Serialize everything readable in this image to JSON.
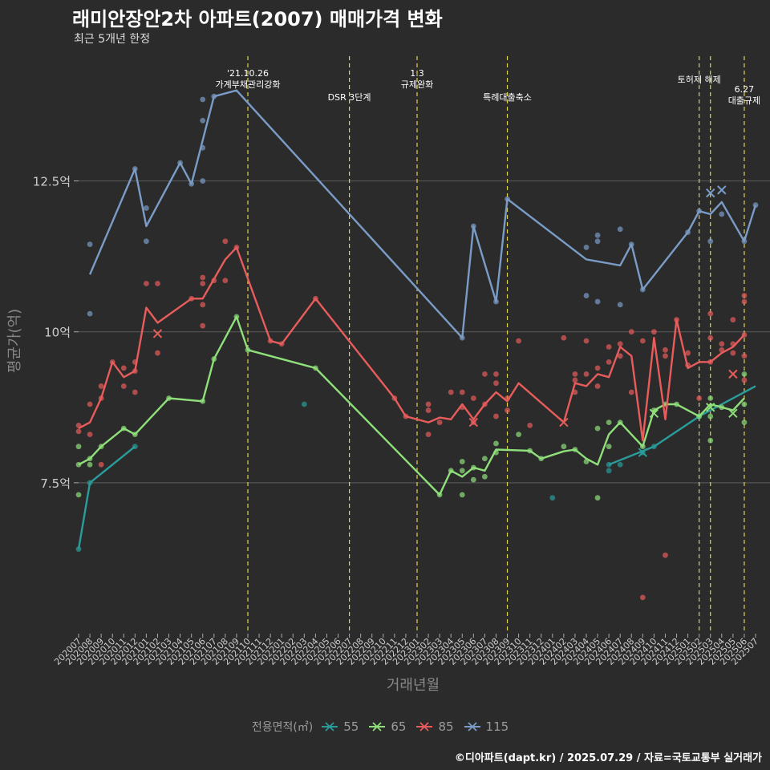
{
  "title": "래미안장안2차 아파트(2007) 매매가격 변화",
  "subtitle": "최근 5개년 한정",
  "caption": "©디아파트(dapt.kr) / 2025.07.29 / 자료=국토교통부 실거래가",
  "chart_data": {
    "type": "line",
    "xlabel": "거래년월",
    "ylabel": "평균가(억)",
    "ylim": [
      5.0,
      14.7
    ],
    "y_ticks": [
      {
        "value": 7.5,
        "label": "7.5억"
      },
      {
        "value": 10,
        "label": "10억"
      },
      {
        "value": 12.5,
        "label": "12.5억"
      }
    ],
    "x_labels": [
      "202007",
      "202008",
      "202009",
      "202010",
      "202011",
      "202012",
      "202101",
      "202102",
      "202103",
      "202104",
      "202105",
      "202106",
      "202107",
      "202108",
      "202109",
      "202110",
      "202111",
      "202112",
      "202201",
      "202202",
      "202203",
      "202204",
      "202205",
      "202206",
      "202207",
      "202208",
      "202209",
      "202210",
      "202211",
      "202212",
      "202301",
      "202302",
      "202303",
      "202304",
      "202305",
      "202306",
      "202307",
      "202308",
      "202309",
      "202310",
      "202311",
      "202312",
      "202401",
      "202402",
      "202403",
      "202404",
      "202405",
      "202406",
      "202407",
      "202408",
      "202409",
      "202410",
      "202411",
      "202412",
      "202501",
      "202502",
      "202503",
      "202504",
      "202505",
      "202506",
      "202507"
    ],
    "legend_title": "전용면적(㎡)",
    "grid": true,
    "series": [
      {
        "name": "55",
        "color": "#2a9d9b",
        "line": [
          [
            0,
            6.4
          ],
          [
            1,
            7.5
          ],
          [
            5,
            8.1
          ]
        ],
        "line2": [
          [
            47,
            7.8
          ],
          [
            51,
            8.1
          ],
          [
            55,
            8.6
          ],
          [
            60,
            9.1
          ]
        ],
        "points": [
          [
            0,
            6.4
          ],
          [
            1,
            7.5
          ],
          [
            5,
            8.1
          ],
          [
            20,
            8.8
          ],
          [
            42,
            7.25
          ],
          [
            47,
            7.7
          ],
          [
            47,
            7.8
          ],
          [
            48,
            7.8
          ],
          [
            50,
            8.0
          ],
          [
            51,
            8.1
          ],
          [
            55,
            8.6
          ]
        ],
        "crosses": [
          [
            50,
            8.0
          ]
        ]
      },
      {
        "name": "65",
        "color": "#8fe07a",
        "line": [
          [
            0,
            7.8
          ],
          [
            1,
            7.9
          ],
          [
            2,
            8.1
          ],
          [
            4,
            8.4
          ],
          [
            5,
            8.3
          ],
          [
            8,
            8.9
          ],
          [
            11,
            8.85
          ],
          [
            12,
            9.55
          ],
          [
            14,
            10.25
          ],
          [
            15,
            9.7
          ],
          [
            21,
            9.4
          ],
          [
            32,
            7.3
          ],
          [
            33,
            7.7
          ],
          [
            34,
            7.6
          ],
          [
            35,
            7.75
          ],
          [
            36,
            7.7
          ],
          [
            37,
            8.05
          ],
          [
            40,
            8.03
          ],
          [
            41,
            7.9
          ],
          [
            43,
            8.02
          ],
          [
            44,
            8.05
          ],
          [
            45,
            7.9
          ],
          [
            46,
            7.8
          ],
          [
            47,
            8.3
          ],
          [
            48,
            8.5
          ],
          [
            50,
            8.1
          ],
          [
            51,
            8.7
          ],
          [
            52,
            8.8
          ],
          [
            53,
            8.8
          ],
          [
            55,
            8.6
          ],
          [
            56,
            8.8
          ],
          [
            57,
            8.75
          ],
          [
            58,
            8.7
          ],
          [
            59,
            8.9
          ]
        ],
        "points": [
          [
            0,
            7.3
          ],
          [
            0,
            7.8
          ],
          [
            0,
            8.1
          ],
          [
            1,
            7.9
          ],
          [
            1,
            7.8
          ],
          [
            2,
            8.1
          ],
          [
            4,
            8.4
          ],
          [
            5,
            8.3
          ],
          [
            8,
            8.9
          ],
          [
            11,
            8.85
          ],
          [
            12,
            9.55
          ],
          [
            14,
            10.25
          ],
          [
            15,
            9.7
          ],
          [
            21,
            9.4
          ],
          [
            32,
            7.3
          ],
          [
            33,
            7.7
          ],
          [
            34,
            7.3
          ],
          [
            34,
            7.7
          ],
          [
            34,
            7.85
          ],
          [
            35,
            7.55
          ],
          [
            35,
            7.75
          ],
          [
            36,
            7.6
          ],
          [
            36,
            7.9
          ],
          [
            37,
            8.0
          ],
          [
            37,
            8.15
          ],
          [
            39,
            8.3
          ],
          [
            40,
            8.03
          ],
          [
            41,
            7.9
          ],
          [
            43,
            8.1
          ],
          [
            44,
            8.05
          ],
          [
            45,
            7.85
          ],
          [
            46,
            7.25
          ],
          [
            46,
            8.4
          ],
          [
            47,
            8.1
          ],
          [
            47,
            8.5
          ],
          [
            48,
            8.5
          ],
          [
            50,
            8.1
          ],
          [
            51,
            8.7
          ],
          [
            52,
            8.8
          ],
          [
            53,
            8.8
          ],
          [
            55,
            8.6
          ],
          [
            56,
            8.2
          ],
          [
            56,
            8.6
          ],
          [
            56,
            8.9
          ],
          [
            57,
            8.75
          ],
          [
            59,
            8.5
          ],
          [
            59,
            8.8
          ],
          [
            59,
            9.3
          ]
        ],
        "crosses": [
          [
            51,
            8.65
          ],
          [
            56,
            8.75
          ],
          [
            58,
            8.65
          ]
        ]
      },
      {
        "name": "85",
        "color": "#e85c5c",
        "line": [
          [
            0,
            8.4
          ],
          [
            1,
            8.5
          ],
          [
            2,
            8.9
          ],
          [
            3,
            9.5
          ],
          [
            4,
            9.25
          ],
          [
            5,
            9.35
          ],
          [
            6,
            10.4
          ],
          [
            7,
            10.15
          ],
          [
            10,
            10.55
          ],
          [
            11,
            10.55
          ],
          [
            13,
            11.2
          ],
          [
            14,
            11.4
          ],
          [
            17,
            9.85
          ],
          [
            18,
            9.8
          ],
          [
            21,
            10.55
          ],
          [
            28,
            8.9
          ],
          [
            29,
            8.6
          ],
          [
            31,
            8.5
          ],
          [
            32,
            8.58
          ],
          [
            33,
            8.55
          ],
          [
            34,
            8.8
          ],
          [
            35,
            8.55
          ],
          [
            36,
            8.8
          ],
          [
            37,
            9.0
          ],
          [
            38,
            8.85
          ],
          [
            39,
            9.15
          ],
          [
            43,
            8.5
          ],
          [
            44,
            9.15
          ],
          [
            45,
            9.1
          ],
          [
            46,
            9.3
          ],
          [
            47,
            9.25
          ],
          [
            48,
            9.75
          ],
          [
            49,
            9.6
          ],
          [
            50,
            8.2
          ],
          [
            51,
            9.9
          ],
          [
            52,
            8.55
          ],
          [
            53,
            10.2
          ],
          [
            54,
            9.4
          ],
          [
            55,
            9.5
          ],
          [
            56,
            9.5
          ],
          [
            57,
            9.65
          ],
          [
            58,
            9.75
          ],
          [
            59,
            9.95
          ]
        ],
        "points": [
          [
            0,
            8.35
          ],
          [
            0,
            8.45
          ],
          [
            1,
            8.8
          ],
          [
            1,
            8.3
          ],
          [
            2,
            8.9
          ],
          [
            2,
            9.1
          ],
          [
            2,
            7.8
          ],
          [
            3,
            9.5
          ],
          [
            4,
            9.4
          ],
          [
            4,
            9.1
          ],
          [
            5,
            9.0
          ],
          [
            5,
            9.35
          ],
          [
            5,
            9.5
          ],
          [
            6,
            10.8
          ],
          [
            7,
            10.8
          ],
          [
            7,
            9.65
          ],
          [
            10,
            10.55
          ],
          [
            11,
            10.1
          ],
          [
            11,
            10.45
          ],
          [
            11,
            10.8
          ],
          [
            11,
            10.9
          ],
          [
            12,
            10.85
          ],
          [
            13,
            10.85
          ],
          [
            13,
            11.5
          ],
          [
            14,
            11.4
          ],
          [
            17,
            9.85
          ],
          [
            18,
            9.8
          ],
          [
            21,
            10.55
          ],
          [
            28,
            8.9
          ],
          [
            29,
            8.6
          ],
          [
            31,
            8.3
          ],
          [
            31,
            8.7
          ],
          [
            31,
            8.8
          ],
          [
            32,
            8.5
          ],
          [
            33,
            9.0
          ],
          [
            34,
            9.0
          ],
          [
            34,
            8.75
          ],
          [
            35,
            8.5
          ],
          [
            35,
            8.9
          ],
          [
            36,
            9.3
          ],
          [
            36,
            8.8
          ],
          [
            37,
            9.3
          ],
          [
            37,
            9.15
          ],
          [
            37,
            8.6
          ],
          [
            38,
            8.9
          ],
          [
            38,
            8.7
          ],
          [
            39,
            9.85
          ],
          [
            40,
            8.45
          ],
          [
            43,
            9.9
          ],
          [
            44,
            9.3
          ],
          [
            44,
            9.2
          ],
          [
            44,
            9.0
          ],
          [
            45,
            9.85
          ],
          [
            45,
            9.3
          ],
          [
            46,
            9.4
          ],
          [
            46,
            9.1
          ],
          [
            47,
            9.75
          ],
          [
            47,
            9.5
          ],
          [
            48,
            9.8
          ],
          [
            48,
            9.6
          ],
          [
            49,
            9.0
          ],
          [
            49,
            10.0
          ],
          [
            50,
            5.6
          ],
          [
            50,
            9.85
          ],
          [
            51,
            10.0
          ],
          [
            52,
            6.3
          ],
          [
            52,
            9.6
          ],
          [
            52,
            9.7
          ],
          [
            53,
            10.2
          ],
          [
            54,
            9.45
          ],
          [
            54,
            9.65
          ],
          [
            55,
            8.9
          ],
          [
            56,
            9.5
          ],
          [
            56,
            9.9
          ],
          [
            56,
            10.3
          ],
          [
            57,
            9.8
          ],
          [
            57,
            9.7
          ],
          [
            58,
            9.8
          ],
          [
            58,
            10.2
          ],
          [
            58,
            9.65
          ],
          [
            59,
            9.95
          ],
          [
            59,
            9.6
          ],
          [
            59,
            10.6
          ],
          [
            59,
            10.5
          ],
          [
            59,
            9.2
          ]
        ],
        "crosses": [
          [
            7,
            9.97
          ],
          [
            35,
            8.5
          ],
          [
            43,
            8.5
          ],
          [
            58,
            9.3
          ]
        ]
      },
      {
        "name": "115",
        "color": "#7a9cc6",
        "line": [
          [
            1,
            10.95
          ],
          [
            5,
            12.7
          ],
          [
            6,
            11.75
          ],
          [
            9,
            12.8
          ],
          [
            10,
            12.45
          ],
          [
            12,
            13.9
          ],
          [
            14,
            14.0
          ],
          [
            34,
            9.9
          ],
          [
            35,
            11.75
          ],
          [
            37,
            10.5
          ],
          [
            38,
            12.2
          ],
          [
            45,
            11.2
          ],
          [
            48,
            11.1
          ],
          [
            49,
            11.45
          ],
          [
            50,
            10.7
          ],
          [
            54,
            11.65
          ],
          [
            55,
            12.0
          ],
          [
            56,
            11.95
          ],
          [
            57,
            12.15
          ],
          [
            59,
            11.5
          ],
          [
            60,
            12.1
          ]
        ],
        "points": [
          [
            1,
            11.45
          ],
          [
            1,
            10.3
          ],
          [
            5,
            12.7
          ],
          [
            6,
            12.05
          ],
          [
            6,
            11.5
          ],
          [
            9,
            12.8
          ],
          [
            10,
            12.45
          ],
          [
            11,
            12.5
          ],
          [
            11,
            13.05
          ],
          [
            11,
            13.5
          ],
          [
            11,
            13.85
          ],
          [
            12,
            13.9
          ],
          [
            34,
            9.9
          ],
          [
            35,
            11.75
          ],
          [
            37,
            10.5
          ],
          [
            38,
            12.2
          ],
          [
            45,
            11.4
          ],
          [
            45,
            10.6
          ],
          [
            46,
            11.6
          ],
          [
            46,
            11.5
          ],
          [
            46,
            10.5
          ],
          [
            48,
            11.7
          ],
          [
            48,
            10.45
          ],
          [
            49,
            11.45
          ],
          [
            50,
            10.7
          ],
          [
            54,
            11.65
          ],
          [
            55,
            12.0
          ],
          [
            56,
            11.5
          ],
          [
            57,
            11.95
          ],
          [
            59,
            11.5
          ],
          [
            60,
            12.1
          ]
        ],
        "crosses": [
          [
            56,
            12.3
          ],
          [
            57,
            12.35
          ]
        ]
      }
    ],
    "events": [
      {
        "index": 15,
        "label": "'21.10.26\n가계부채관리강화"
      },
      {
        "index": 24,
        "label": "DSR 3단계"
      },
      {
        "index": 30,
        "label": "1.3\n규제완화"
      },
      {
        "index": 38,
        "label": "특례대출축소"
      },
      {
        "index": 55,
        "label": "토허제 해제"
      },
      {
        "index": 56,
        "label": ""
      },
      {
        "index": 59,
        "label": "6.27\n대출규제"
      }
    ]
  }
}
